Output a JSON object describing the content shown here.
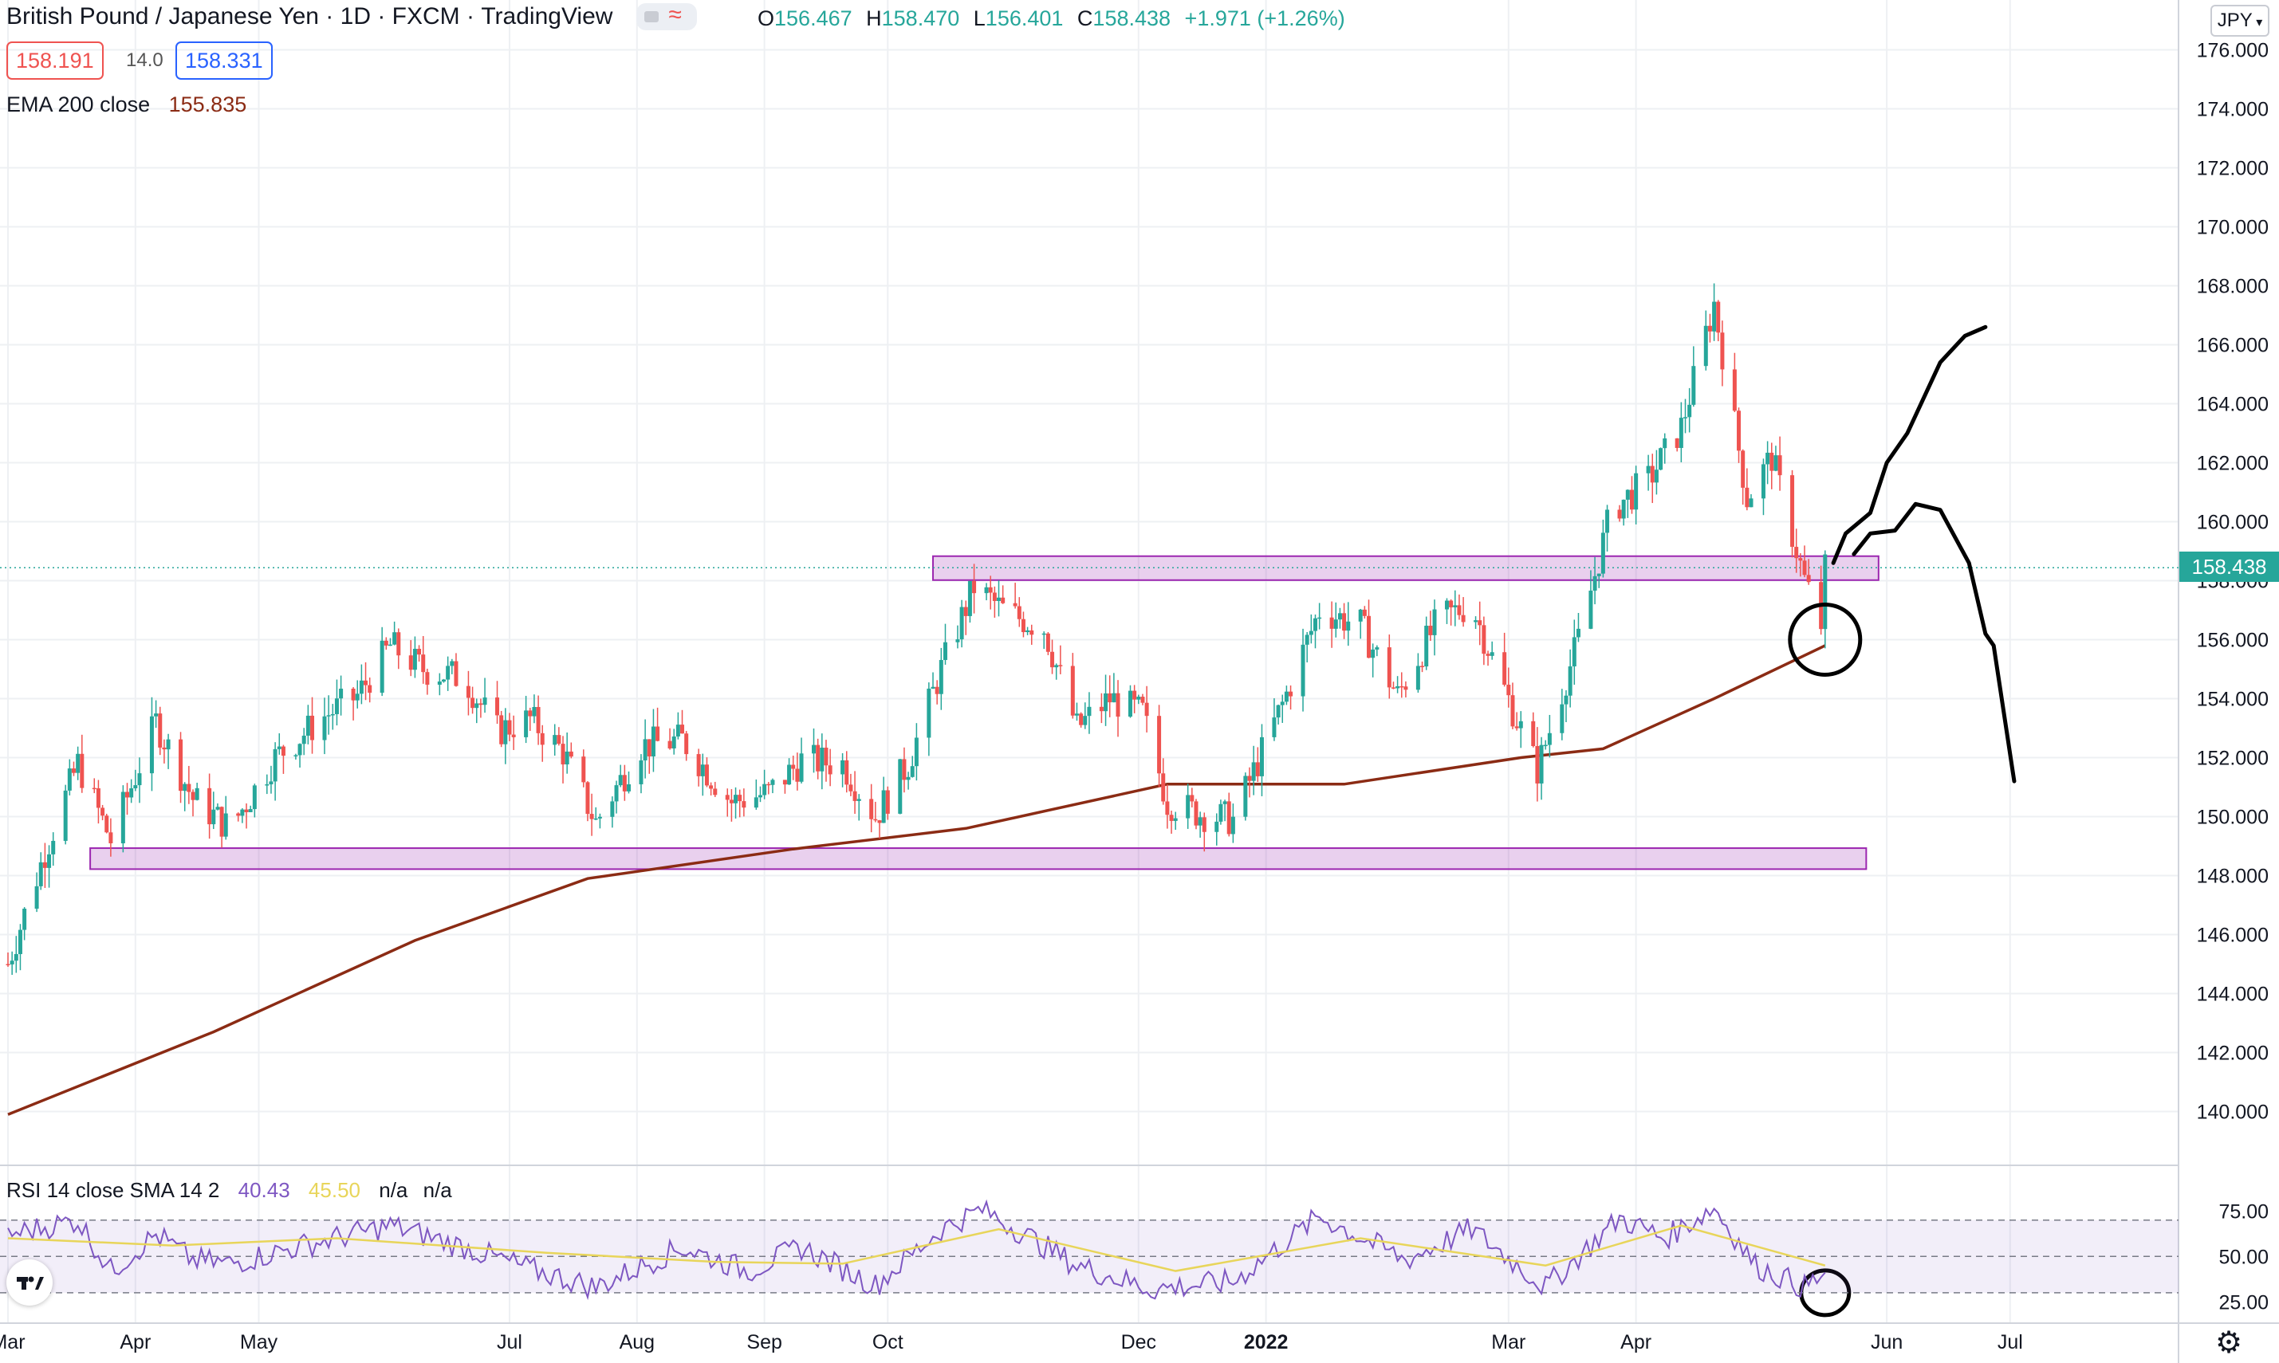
{
  "header": {
    "symbol": "British Pound / Japanese Yen",
    "interval": "1D",
    "exchange": "FXCM",
    "platform": "TradingView",
    "open_label": "O",
    "open": "156.467",
    "high_label": "H",
    "high": "158.470",
    "low_label": "L",
    "low": "156.401",
    "close_label": "C",
    "close": "158.438",
    "change": "+1.971 (+1.26%)"
  },
  "trade": {
    "sell": "158.191",
    "spread": "14.0",
    "buy": "158.331"
  },
  "ema": {
    "label": "EMA 200 close",
    "value": "155.835"
  },
  "rsi": {
    "label": "RSI 14 close SMA 14 2",
    "rsi_value": "40.43",
    "sma_value": "45.50",
    "na1": "n/a",
    "na2": "n/a"
  },
  "currency": {
    "label": "JPY"
  },
  "last_price": "158.438",
  "colors": {
    "up": "#26a69a",
    "down": "#ef5350",
    "ema": "#8b2b14",
    "rsi": "#7e57c2",
    "rsi_ma": "#e8d55a",
    "zone": "#9c27b0"
  },
  "icons": {
    "logo": "tradingview-logo-icon",
    "settings": "gear-icon"
  },
  "chart_data": {
    "type": "candlestick",
    "price_axis": {
      "ticks": [
        176,
        174,
        172,
        170,
        168,
        166,
        164,
        162,
        160,
        158,
        156,
        154,
        152,
        150,
        148,
        146,
        144,
        142,
        140
      ],
      "decimals": 3
    },
    "rsi_axis": {
      "ticks": [
        75,
        50,
        25
      ],
      "band": [
        30,
        70
      ]
    },
    "time_axis": {
      "labels": [
        "Mar",
        "Apr",
        "May",
        "Jul",
        "Aug",
        "Sep",
        "Oct",
        "Dec",
        "2022",
        "Mar",
        "Apr",
        "Jun",
        "Jul"
      ]
    },
    "price_series": [
      [
        "2021-03-01",
        145.0
      ],
      [
        "2021-03-10",
        148.8
      ],
      [
        "2021-03-18",
        151.8
      ],
      [
        "2021-03-26",
        149.2
      ],
      [
        "2021-04-06",
        153.2
      ],
      [
        "2021-04-15",
        150.6
      ],
      [
        "2021-04-24",
        149.6
      ],
      [
        "2021-05-05",
        152.0
      ],
      [
        "2021-05-17",
        153.4
      ],
      [
        "2021-05-25",
        154.1
      ],
      [
        "2021-06-02",
        155.8
      ],
      [
        "2021-06-10",
        155.0
      ],
      [
        "2021-06-20",
        154.7
      ],
      [
        "2021-06-28",
        152.9
      ],
      [
        "2021-07-06",
        153.3
      ],
      [
        "2021-07-14",
        152.2
      ],
      [
        "2021-07-22",
        149.8
      ],
      [
        "2021-08-02",
        152.4
      ],
      [
        "2021-08-12",
        152.6
      ],
      [
        "2021-08-24",
        150.5
      ],
      [
        "2021-09-02",
        150.8
      ],
      [
        "2021-09-10",
        151.9
      ],
      [
        "2021-09-20",
        151.8
      ],
      [
        "2021-09-28",
        150.0
      ],
      [
        "2021-10-06",
        151.8
      ],
      [
        "2021-10-14",
        155.0
      ],
      [
        "2021-10-22",
        157.8
      ],
      [
        "2021-10-30",
        156.9
      ],
      [
        "2021-11-08",
        156.4
      ],
      [
        "2021-11-16",
        153.0
      ],
      [
        "2021-11-24",
        154.0
      ],
      [
        "2021-12-02",
        153.5
      ],
      [
        "2021-12-08",
        150.5
      ],
      [
        "2021-12-16",
        150.1
      ],
      [
        "2021-12-24",
        149.9
      ],
      [
        "2022-01-05",
        153.8
      ],
      [
        "2022-01-14",
        157.0
      ],
      [
        "2022-01-24",
        156.5
      ],
      [
        "2022-02-02",
        154.1
      ],
      [
        "2022-02-12",
        156.7
      ],
      [
        "2022-02-20",
        157.2
      ],
      [
        "2022-02-28",
        154.3
      ],
      [
        "2022-03-08",
        151.6
      ],
      [
        "2022-03-18",
        156.0
      ],
      [
        "2022-03-26",
        160.4
      ],
      [
        "2022-04-04",
        161.4
      ],
      [
        "2022-04-12",
        163.2
      ],
      [
        "2022-04-20",
        167.4
      ],
      [
        "2022-04-28",
        160.8
      ],
      [
        "2022-05-04",
        162.2
      ],
      [
        "2022-05-12",
        158.0
      ],
      [
        "2022-05-16",
        156.5
      ],
      [
        "2022-05-17",
        158.4
      ]
    ],
    "ema200_series": [
      [
        "2021-03-01",
        139.9
      ],
      [
        "2021-04-20",
        142.7
      ],
      [
        "2021-06-08",
        145.8
      ],
      [
        "2021-07-20",
        147.9
      ],
      [
        "2021-09-08",
        148.9
      ],
      [
        "2021-10-20",
        149.6
      ],
      [
        "2021-12-08",
        151.1
      ],
      [
        "2022-01-20",
        151.1
      ],
      [
        "2022-03-04",
        152.0
      ],
      [
        "2022-03-24",
        152.3
      ],
      [
        "2022-04-20",
        154.0
      ],
      [
        "2022-05-17",
        155.8
      ]
    ],
    "rsi_series": [
      [
        "2021-03-01",
        62
      ],
      [
        "2021-03-18",
        70
      ],
      [
        "2021-03-26",
        42
      ],
      [
        "2021-04-06",
        62
      ],
      [
        "2021-04-15",
        48
      ],
      [
        "2021-04-24",
        46
      ],
      [
        "2021-05-10",
        55
      ],
      [
        "2021-06-02",
        67
      ],
      [
        "2021-06-20",
        55
      ],
      [
        "2021-07-06",
        43
      ],
      [
        "2021-07-22",
        33
      ],
      [
        "2021-08-12",
        55
      ],
      [
        "2021-08-28",
        42
      ],
      [
        "2021-09-10",
        55
      ],
      [
        "2021-09-28",
        34
      ],
      [
        "2021-10-14",
        65
      ],
      [
        "2021-10-24",
        76
      ],
      [
        "2021-11-16",
        45
      ],
      [
        "2021-12-04",
        32
      ],
      [
        "2021-12-24",
        36
      ],
      [
        "2022-01-14",
        72
      ],
      [
        "2022-02-04",
        48
      ],
      [
        "2022-02-20",
        65
      ],
      [
        "2022-03-10",
        33
      ],
      [
        "2022-03-28",
        71
      ],
      [
        "2022-04-08",
        60
      ],
      [
        "2022-04-20",
        77
      ],
      [
        "2022-04-30",
        45
      ],
      [
        "2022-05-12",
        33
      ],
      [
        "2022-05-17",
        40
      ]
    ],
    "rsi_ma_series": [
      [
        "2021-03-01",
        60
      ],
      [
        "2021-04-10",
        56
      ],
      [
        "2021-05-20",
        60
      ],
      [
        "2021-07-10",
        52
      ],
      [
        "2021-08-20",
        47
      ],
      [
        "2021-09-20",
        46
      ],
      [
        "2021-10-28",
        65
      ],
      [
        "2021-12-10",
        42
      ],
      [
        "2022-01-24",
        60
      ],
      [
        "2022-03-10",
        45
      ],
      [
        "2022-04-12",
        67
      ],
      [
        "2022-05-17",
        45
      ]
    ],
    "zones": [
      {
        "from": "2021-10-12",
        "to": "2022-05-30",
        "low": 158.1,
        "high": 158.75
      },
      {
        "from": "2021-03-21",
        "to": "2022-05-27",
        "low": 148.3,
        "high": 148.85
      }
    ],
    "projections": [
      [
        [
          "2022-05-19",
          158.6
        ],
        [
          "2022-05-22",
          159.6
        ],
        [
          "2022-05-28",
          160.3
        ],
        [
          "2022-06-01",
          162.0
        ],
        [
          "2022-06-06",
          163.0
        ],
        [
          "2022-06-14",
          165.4
        ],
        [
          "2022-06-20",
          166.3
        ],
        [
          "2022-06-25",
          166.6
        ]
      ],
      [
        [
          "2022-05-24",
          158.9
        ],
        [
          "2022-05-28",
          159.6
        ],
        [
          "2022-06-03",
          159.7
        ],
        [
          "2022-06-08",
          160.6
        ],
        [
          "2022-06-14",
          160.4
        ],
        [
          "2022-06-21",
          158.6
        ],
        [
          "2022-06-25",
          156.2
        ],
        [
          "2022-06-27",
          155.8
        ],
        [
          "2022-07-02",
          151.2
        ]
      ]
    ],
    "last_price": 158.438
  }
}
